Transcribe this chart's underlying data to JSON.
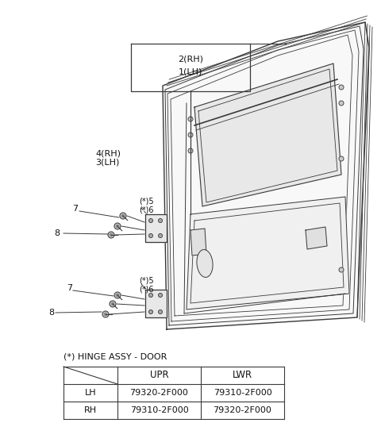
{
  "background_color": "#ffffff",
  "table_title": "(*) HINGE ASSY - DOOR",
  "table_headers": [
    "",
    "UPR",
    "LWR"
  ],
  "table_rows": [
    [
      "LH",
      "79320-2F000",
      "79310-2F000"
    ],
    [
      "RH",
      "79310-2F000",
      "79320-2F000"
    ]
  ],
  "label_2rh": "2(RH)",
  "label_1lh": "1(LH)",
  "label_4rh": "4(RH)",
  "label_3lh": "3(LH)",
  "label_star5": "(*)5",
  "label_star6": "(*)6",
  "label_7": "7",
  "label_8": "8",
  "line_color": "#3a3a3a",
  "fill_white": "#ffffff",
  "fill_light": "#f5f5f5"
}
